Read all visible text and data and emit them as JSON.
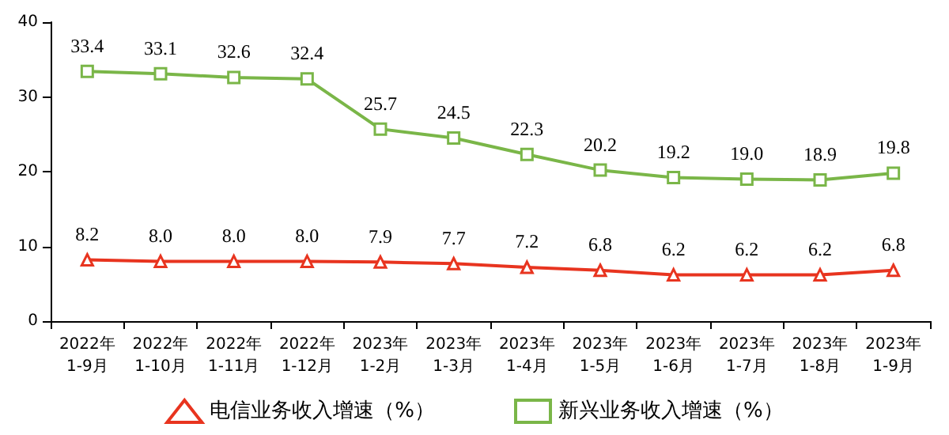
{
  "chart_data": {
    "type": "line",
    "categories": [
      "2022年\n1-9月",
      "2022年\n1-10月",
      "2022年\n1-11月",
      "2022年\n1-12月",
      "2023年\n1-2月",
      "2023年\n1-3月",
      "2023年\n1-4月",
      "2023年\n1-5月",
      "2023年\n1-6月",
      "2023年\n1-7月",
      "2023年\n1-8月",
      "2023年\n1-9月"
    ],
    "series": [
      {
        "name": "电信业务收入增速（%）",
        "color": "#e8341f",
        "marker": "triangle",
        "values": [
          8.2,
          8.0,
          8.0,
          8.0,
          7.9,
          7.7,
          7.2,
          6.8,
          6.2,
          6.2,
          6.2,
          6.8
        ],
        "value_labels": [
          "8.2",
          "8.0",
          "8.0",
          "8.0",
          "7.9",
          "7.7",
          "7.2",
          "6.8",
          "6.2",
          "6.2",
          "6.2",
          "6.8"
        ]
      },
      {
        "name": "新兴业务收入增速（%）",
        "color": "#7ab648",
        "marker": "square",
        "values": [
          33.4,
          33.1,
          32.6,
          32.4,
          25.7,
          24.5,
          22.3,
          20.2,
          19.2,
          19.0,
          18.9,
          19.8
        ],
        "value_labels": [
          "33.4",
          "33.1",
          "32.6",
          "32.4",
          "25.7",
          "24.5",
          "22.3",
          "20.2",
          "19.2",
          "19.0",
          "18.9",
          "19.8"
        ]
      }
    ],
    "ylim": [
      0,
      40
    ],
    "yticks": [
      0,
      10,
      20,
      30,
      40
    ],
    "grid": false,
    "legend": "bottom",
    "line_style": "solid"
  }
}
